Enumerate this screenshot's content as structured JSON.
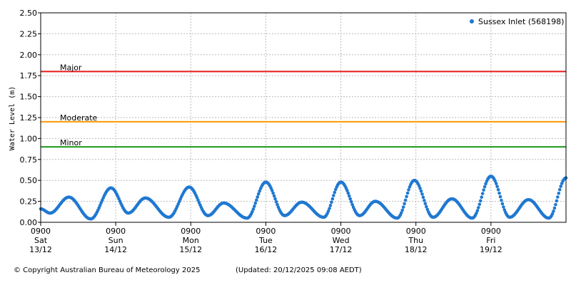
{
  "chart_data": {
    "type": "scatter",
    "ylabel": "Water Level (m)",
    "ylim": [
      0,
      2.5
    ],
    "yticks": [
      "0.00",
      "0.25",
      "0.50",
      "0.75",
      "1.00",
      "1.25",
      "1.50",
      "1.75",
      "2.00",
      "2.25",
      "2.50"
    ],
    "xlim": [
      "2025-12-13 09:00",
      "2025-12-20 09:00"
    ],
    "xticks": [
      {
        "time": "0900",
        "day": "Sat",
        "date": "13/12"
      },
      {
        "time": "0900",
        "day": "Sun",
        "date": "14/12"
      },
      {
        "time": "0900",
        "day": "Mon",
        "date": "15/12"
      },
      {
        "time": "0900",
        "day": "Tue",
        "date": "16/12"
      },
      {
        "time": "0900",
        "day": "Wed",
        "date": "17/12"
      },
      {
        "time": "0900",
        "day": "Thu",
        "date": "18/12"
      },
      {
        "time": "0900",
        "day": "Fri",
        "date": "19/12"
      }
    ],
    "thresholds": [
      {
        "label": "Major",
        "value": 1.8,
        "color": "#e41a1c"
      },
      {
        "label": "Moderate",
        "value": 1.2,
        "color": "#ff9900"
      },
      {
        "label": "Minor",
        "value": 0.9,
        "color": "#1a9a1a"
      }
    ],
    "legend": "top-right",
    "grid": true,
    "series": [
      {
        "name": "Sussex Inlet (568198)",
        "color": "#1f78d1",
        "extrema": [
          {
            "t": "2025-12-13 09:00",
            "v": 0.16
          },
          {
            "t": "2025-12-13 12:00",
            "v": 0.11
          },
          {
            "t": "2025-12-13 18:00",
            "v": 0.3
          },
          {
            "t": "2025-12-14 01:00",
            "v": 0.04
          },
          {
            "t": "2025-12-14 07:30",
            "v": 0.41
          },
          {
            "t": "2025-12-14 13:00",
            "v": 0.11
          },
          {
            "t": "2025-12-14 18:30",
            "v": 0.29
          },
          {
            "t": "2025-12-15 02:00",
            "v": 0.06
          },
          {
            "t": "2025-12-15 08:30",
            "v": 0.42
          },
          {
            "t": "2025-12-15 14:30",
            "v": 0.08
          },
          {
            "t": "2025-12-15 19:30",
            "v": 0.23
          },
          {
            "t": "2025-12-16 03:00",
            "v": 0.05
          },
          {
            "t": "2025-12-16 09:00",
            "v": 0.48
          },
          {
            "t": "2025-12-16 15:00",
            "v": 0.08
          },
          {
            "t": "2025-12-16 20:30",
            "v": 0.24
          },
          {
            "t": "2025-12-17 03:30",
            "v": 0.06
          },
          {
            "t": "2025-12-17 09:00",
            "v": 0.48
          },
          {
            "t": "2025-12-17 15:00",
            "v": 0.08
          },
          {
            "t": "2025-12-17 20:00",
            "v": 0.25
          },
          {
            "t": "2025-12-18 03:00",
            "v": 0.05
          },
          {
            "t": "2025-12-18 08:30",
            "v": 0.5
          },
          {
            "t": "2025-12-18 14:30",
            "v": 0.06
          },
          {
            "t": "2025-12-18 20:30",
            "v": 0.28
          },
          {
            "t": "2025-12-19 03:00",
            "v": 0.05
          },
          {
            "t": "2025-12-19 09:00",
            "v": 0.55
          },
          {
            "t": "2025-12-19 15:00",
            "v": 0.06
          },
          {
            "t": "2025-12-19 21:00",
            "v": 0.27
          },
          {
            "t": "2025-12-20 03:30",
            "v": 0.05
          },
          {
            "t": "2025-12-20 09:00",
            "v": 0.53
          }
        ]
      }
    ]
  },
  "footer": {
    "copyright": "© Copyright Australian Bureau of Meteorology 2025",
    "updated": "(Updated: 20/12/2025 09:08 AEDT)"
  }
}
